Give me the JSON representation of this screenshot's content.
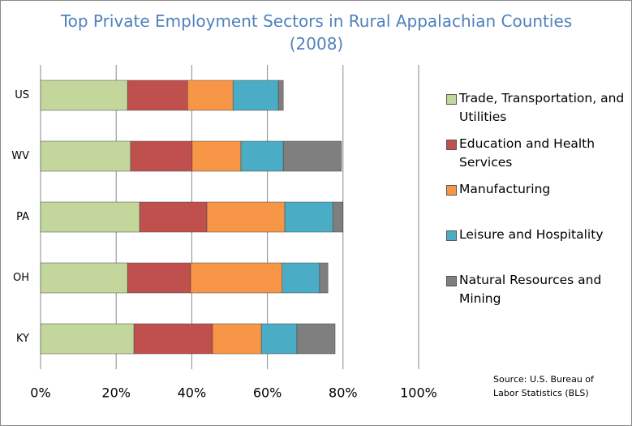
{
  "chart_data": {
    "type": "stacked-bar-horizontal",
    "title": "Top Private Employment Sectors in Rural Appalachian Counties (2008)",
    "source": "Source: U.S. Bureau of Labor Statistics  (BLS)",
    "categories": [
      "US",
      "WV",
      "PA",
      "OH",
      "KY"
    ],
    "series": [
      {
        "name": "Trade, Transportation, and Utilities",
        "color": "#c3d69b",
        "values": [
          23.0,
          23.8,
          26.2,
          23.0,
          24.7
        ]
      },
      {
        "name": "Education and Health Services",
        "color": "#c0504d",
        "values": [
          15.9,
          16.3,
          17.8,
          16.7,
          20.8
        ]
      },
      {
        "name": "Manufacturing",
        "color": "#f79646",
        "values": [
          12.0,
          12.9,
          20.6,
          24.2,
          12.9
        ]
      },
      {
        "name": "Leisure and Hospitality",
        "color": "#4bacc6",
        "values": [
          12.0,
          11.2,
          12.7,
          9.9,
          9.4
        ]
      },
      {
        "name": "Natural Resources and Mining",
        "color": "#7f7f7f",
        "values": [
          1.3,
          15.4,
          2.7,
          2.2,
          10.1
        ]
      }
    ],
    "xlim": [
      0,
      100
    ],
    "xticks": [
      {
        "value": 0,
        "label": "0%"
      },
      {
        "value": 20,
        "label": "20%"
      },
      {
        "value": 40,
        "label": "40%"
      },
      {
        "value": 60,
        "label": "60%"
      },
      {
        "value": 80,
        "label": "80%"
      },
      {
        "value": 100,
        "label": "100%"
      }
    ],
    "grid": true,
    "legend": "right"
  }
}
